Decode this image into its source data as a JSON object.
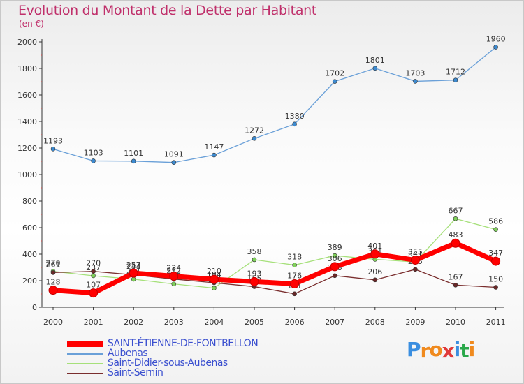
{
  "chart_data": {
    "type": "line",
    "title": "Evolution du Montant de la Dette par Habitant",
    "subtitle": "(en €)",
    "xlabel": "",
    "ylabel": "",
    "categories": [
      "2000",
      "2001",
      "2002",
      "2003",
      "2004",
      "2005",
      "2006",
      "2007",
      "2008",
      "2009",
      "2010",
      "2011"
    ],
    "ylim": [
      0,
      2000
    ],
    "yticks": [
      0,
      200,
      400,
      600,
      800,
      1000,
      1200,
      1400,
      1600,
      1800,
      2000
    ],
    "grid": false,
    "legend_position": "bottom-left",
    "series": [
      {
        "name": "SAINT-ÉTIENNE-DE-FONTBELLON",
        "color": "#ff0000",
        "emphasis": true,
        "values": [
          128,
          107,
          257,
          234,
          210,
          193,
          176,
          306,
          401,
          355,
          483,
          347
        ]
      },
      {
        "name": "Aubenas",
        "color": "#6aa0d8",
        "point_color": "#3c8ad0",
        "values": [
          1193,
          1103,
          1101,
          1091,
          1147,
          1272,
          1380,
          1702,
          1801,
          1703,
          1712,
          1960
        ]
      },
      {
        "name": "Saint-Didier-sous-Aubenas",
        "color": "#a6e07a",
        "point_color": "#7fd05a",
        "values": [
          270,
          237,
          211,
          175,
          144,
          358,
          318,
          389,
          361,
          341,
          667,
          586
        ]
      },
      {
        "name": "Saint-Sernin",
        "color": "#7a2e2e",
        "point_color": "#6a2828",
        "values": [
          261,
          270,
          244,
          212,
          184,
          155,
          101,
          238,
          206,
          285,
          167,
          150
        ]
      }
    ]
  },
  "brand": {
    "text": "Proxiti",
    "letters": [
      "P",
      "r",
      "o",
      "x",
      "i",
      "t",
      "i"
    ],
    "colors": [
      "#3a8ee0",
      "#f08a1e",
      "#f08a1e",
      "#e03a3a",
      "#3a8ee0",
      "#2aa84a",
      "#f08a1e"
    ]
  }
}
